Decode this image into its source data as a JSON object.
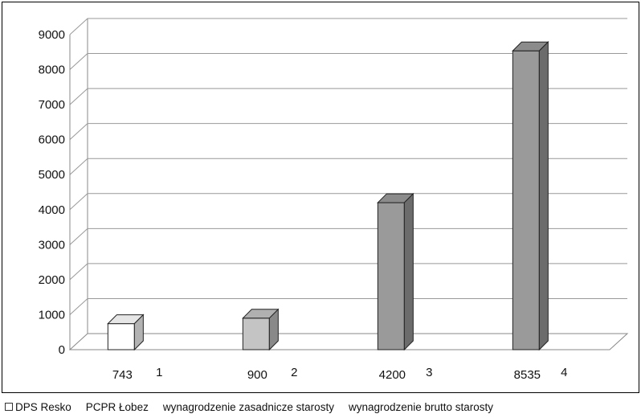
{
  "chart_data": {
    "type": "bar",
    "categories": [
      "1",
      "2",
      "3",
      "4"
    ],
    "values": [
      743,
      900,
      4200,
      8535
    ],
    "value_labels": [
      "743",
      "900",
      "4200",
      "8535"
    ],
    "series": [
      {
        "name": "DPS Resko",
        "color": "#ffffff",
        "show_swatch": true
      },
      {
        "name": "PCPR Łobez",
        "color": "#c4c4c4",
        "show_swatch": false
      },
      {
        "name": "wynagrodzenie zasadnicze starosty",
        "color": "#9a9a9a",
        "show_swatch": false
      },
      {
        "name": "wynagrodzenie brutto starosty",
        "color": "#9a9a9a",
        "show_swatch": false
      }
    ],
    "ylim": [
      0,
      9000
    ],
    "yticks": [
      0,
      1000,
      2000,
      3000,
      4000,
      5000,
      6000,
      7000,
      8000,
      9000
    ],
    "grid": true,
    "legend_position": "bottom"
  }
}
